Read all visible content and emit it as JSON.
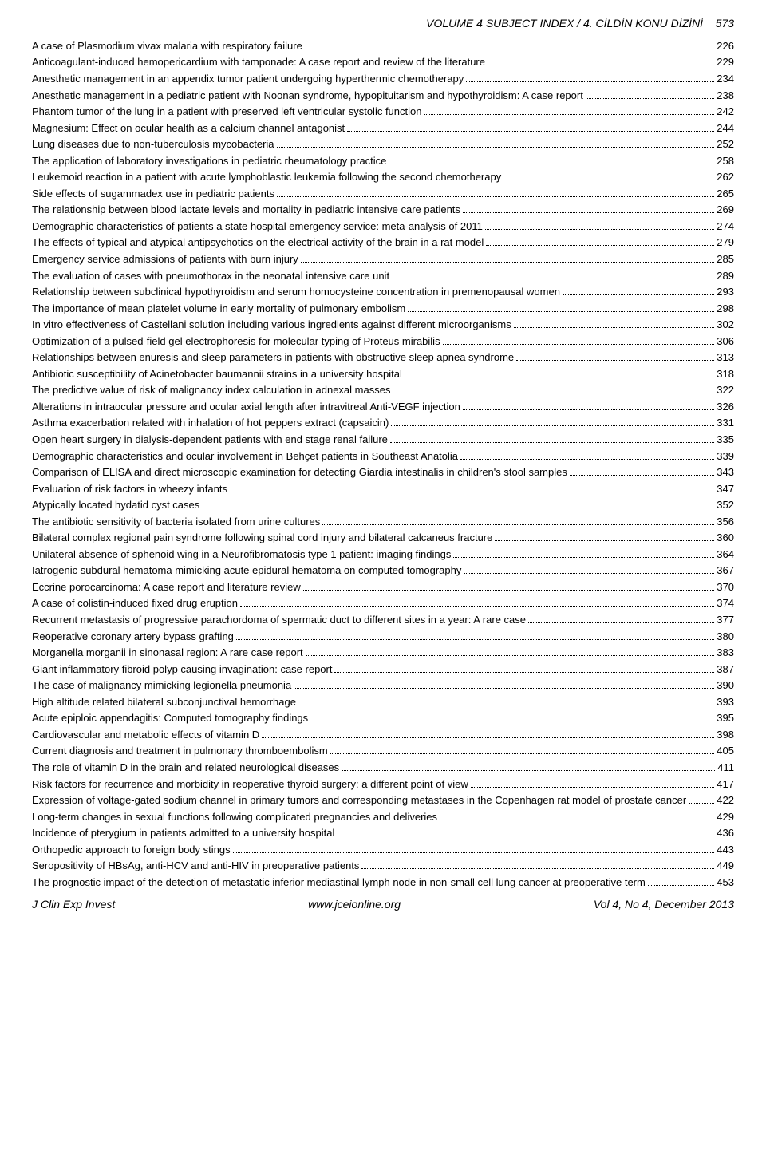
{
  "header": "VOLUME 4 SUBJECT INDEX / 4. CİLDİN KONU DİZİNİ",
  "header_page": "573",
  "entries": [
    {
      "title": "A case of Plasmodium vivax malaria with respiratory failure",
      "page": "226"
    },
    {
      "title": "Anticoagulant-induced hemopericardium with tamponade: A case report and review of the literature",
      "page": "229"
    },
    {
      "title": "Anesthetic management in an appendix tumor patient undergoing hyperthermic chemotherapy",
      "page": "234"
    },
    {
      "title": "Anesthetic management in a pediatric patient with Noonan syndrome, hypopituitarism and hypothyroidism: A case report",
      "page": "238"
    },
    {
      "title": "Phantom tumor of the lung in a patient with preserved left ventricular systolic function",
      "page": "242"
    },
    {
      "title": "Magnesium: Effect on ocular health as a calcium channel antagonist",
      "page": "244"
    },
    {
      "title": "Lung diseases due to non-tuberculosis mycobacteria",
      "page": "252"
    },
    {
      "title": "The application of laboratory investigations in pediatric rheumatology practice",
      "page": "258"
    },
    {
      "title": "Leukemoid reaction in a patient with acute lymphoblastic leukemia following the second chemotherapy",
      "page": "262"
    },
    {
      "title": "Side effects of sugammadex use in pediatric patients",
      "page": "265"
    },
    {
      "title": "The relationship between blood lactate levels and mortality in pediatric intensive care patients",
      "page": "269"
    },
    {
      "title": "Demographic characteristics of patients a state hospital emergency service: meta-analysis of 2011",
      "page": "274"
    },
    {
      "title": "The effects of typical and atypical antipsychotics on the electrical activity of the brain in a rat model",
      "page": "279"
    },
    {
      "title": "Emergency service admissions of patients with burn injury",
      "page": "285"
    },
    {
      "title": "The evaluation of cases with pneumothorax in the neonatal intensive care unit",
      "page": "289"
    },
    {
      "title": "Relationship between subclinical hypothyroidism and serum homocysteine concentration in premenopausal women",
      "page": "293"
    },
    {
      "title": "The importance of mean platelet volume in early mortality of pulmonary embolism",
      "page": "298"
    },
    {
      "title": "In vitro effectiveness of Castellani solution including various ingredients against different microorganisms",
      "page": "302"
    },
    {
      "title": "Optimization of a pulsed-field gel electrophoresis for molecular typing of Proteus mirabilis",
      "page": "306"
    },
    {
      "title": "Relationships between enuresis and sleep parameters in patients with obstructive sleep apnea syndrome",
      "page": "313"
    },
    {
      "title": "Antibiotic susceptibility of Acinetobacter baumannii strains in a university hospital",
      "page": "318"
    },
    {
      "title": "The predictive value of risk of malignancy index calculation in adnexal masses",
      "page": "322"
    },
    {
      "title": "Alterations in intraocular pressure and ocular axial length after intravitreal Anti-VEGF injection",
      "page": "326"
    },
    {
      "title": "Asthma exacerbation related with inhalation of hot peppers extract (capsaicin)",
      "page": "331"
    },
    {
      "title": "Open heart surgery in dialysis-dependent patients with end stage renal failure",
      "page": "335"
    },
    {
      "title": "Demographic characteristics and ocular involvement in Behçet patients in Southeast Anatolia",
      "page": "339"
    },
    {
      "title": "Comparison of ELISA and direct microscopic examination for detecting Giardia intestinalis in children's stool samples",
      "page": "343"
    },
    {
      "title": "Evaluation of risk factors in wheezy infants",
      "page": "347"
    },
    {
      "title": "Atypically located hydatid cyst cases",
      "page": "352"
    },
    {
      "title": "The antibiotic sensitivity of bacteria isolated from urine cultures",
      "page": "356"
    },
    {
      "title": "Bilateral complex regional pain syndrome following spinal cord injury and bilateral calcaneus fracture",
      "page": "360"
    },
    {
      "title": "Unilateral absence of sphenoid wing in a Neurofibromatosis type 1 patient: imaging findings",
      "page": "364"
    },
    {
      "title": "Iatrogenic subdural hematoma mimicking acute epidural hematoma on computed tomography",
      "page": "367"
    },
    {
      "title": "Eccrine porocarcinoma: A case report and literature review",
      "page": "370"
    },
    {
      "title": "A case of colistin-induced fixed drug eruption",
      "page": "374"
    },
    {
      "title": "Recurrent metastasis of progressive parachordoma of spermatic duct to different sites in a year: A rare case",
      "page": "377"
    },
    {
      "title": "Reoperative coronary artery bypass grafting",
      "page": "380"
    },
    {
      "title": "Morganella morganii in sinonasal region: A rare case report",
      "page": "383"
    },
    {
      "title": "Giant inflammatory fibroid polyp causing invagination: case report",
      "page": "387"
    },
    {
      "title": "The case of malignancy mimicking legionella pneumonia",
      "page": "390"
    },
    {
      "title": "High altitude related bilateral subconjunctival hemorrhage",
      "page": "393"
    },
    {
      "title": "Acute epiploic appendagitis: Computed tomography findings",
      "page": "395"
    },
    {
      "title": "Cardiovascular and metabolic effects of vitamin D",
      "page": "398"
    },
    {
      "title": "Current diagnosis and treatment in pulmonary thromboembolism",
      "page": "405"
    },
    {
      "title": "The role of vitamin D in the brain and related neurological diseases",
      "page": "411"
    },
    {
      "title": "Risk factors for recurrence and morbidity in reoperative thyroid surgery: a different point of view",
      "page": "417"
    },
    {
      "title": "Expression of voltage-gated sodium channel in primary tumors and corresponding metastases in the Copenhagen rat model of prostate cancer",
      "page": "422"
    },
    {
      "title": "Long-term changes in sexual functions following complicated pregnancies and deliveries",
      "page": "429"
    },
    {
      "title": "Incidence of pterygium in patients admitted to a university hospital",
      "page": "436"
    },
    {
      "title": "Orthopedic approach to foreign body stings",
      "page": "443"
    },
    {
      "title": "Seropositivity of HBsAg, anti-HCV and anti-HIV in preoperative patients",
      "page": "449"
    },
    {
      "title": "The prognostic impact of the detection of metastatic inferior mediastinal lymph node in non-small cell lung cancer at preoperative term",
      "page": "453"
    }
  ],
  "footer": {
    "left": "J Clin Exp Invest",
    "center": "www.jceionline.org",
    "right": "Vol 4, No 4, December 2013"
  }
}
